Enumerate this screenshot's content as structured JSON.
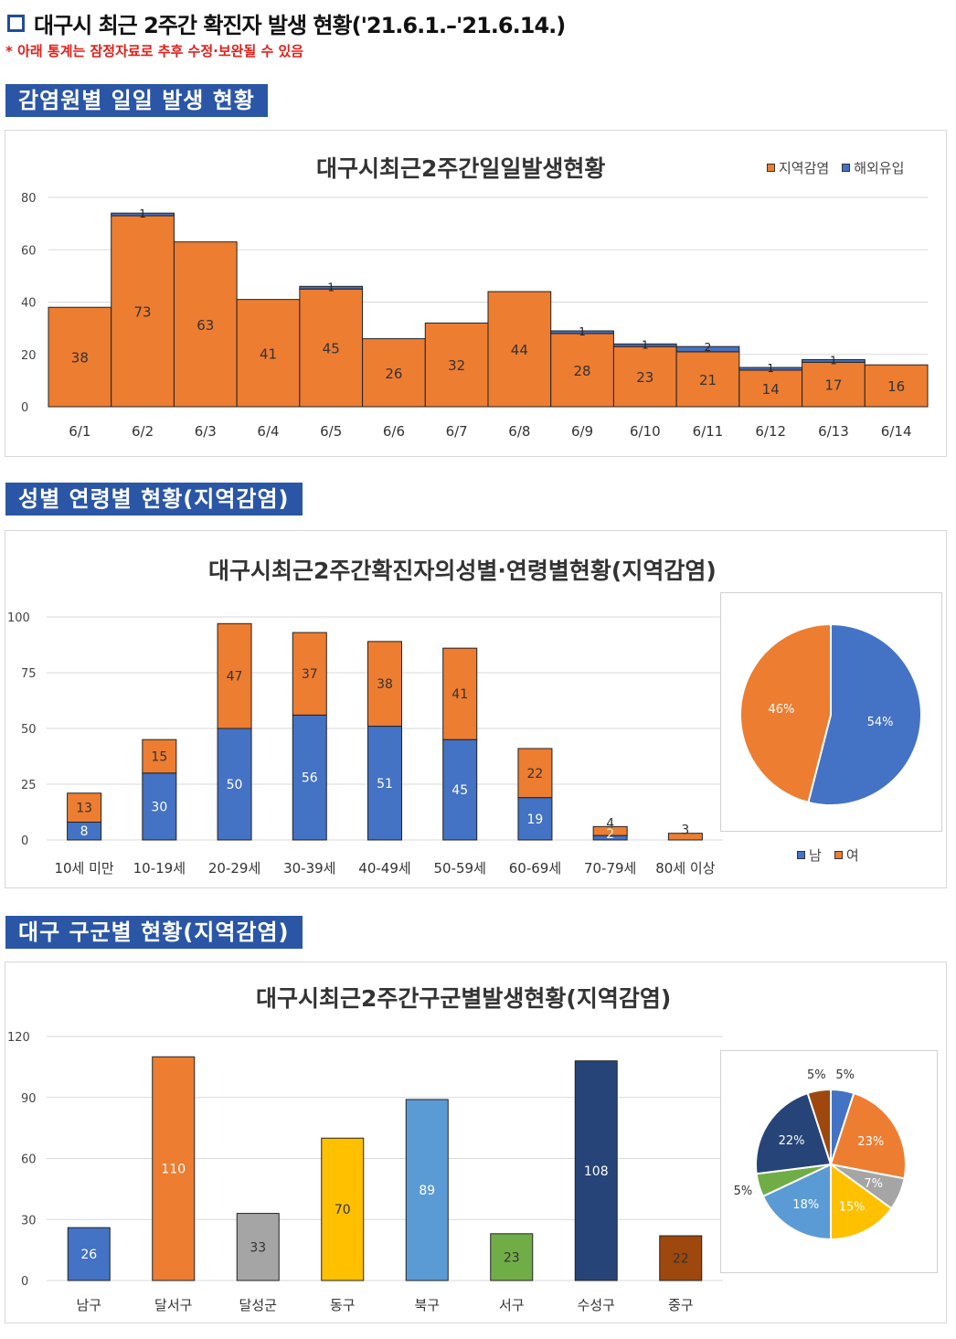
{
  "header": {
    "title": "대구시 최근 2주간 확진자 발생 현황('21.6.1.–'21.6.14.)",
    "notice": "* 아래 통계는 잠정자료로 추후 수정·보완될 수 있음"
  },
  "sections": {
    "daily": "감염원별 일일 발생 현황",
    "gender_age": "성별 연령별 현황(지역감염)",
    "district": "대구 구군별 현황(지역감염)"
  },
  "colors": {
    "orange": "#ed7d31",
    "blue": "#4472c4",
    "section": "#2a56a5"
  },
  "chart_data": [
    {
      "type": "bar",
      "stacked": true,
      "title": "대구시최근2주간일일발생현황",
      "categories": [
        "6/1",
        "6/2",
        "6/3",
        "6/4",
        "6/5",
        "6/6",
        "6/7",
        "6/8",
        "6/9",
        "6/10",
        "6/11",
        "6/12",
        "6/13",
        "6/14"
      ],
      "series": [
        {
          "name": "지역감염",
          "color": "#ed7d31",
          "values": [
            38,
            73,
            63,
            41,
            45,
            26,
            32,
            44,
            28,
            23,
            21,
            14,
            17,
            16
          ]
        },
        {
          "name": "해외유입",
          "color": "#4472c4",
          "values": [
            0,
            1,
            0,
            0,
            1,
            0,
            0,
            0,
            1,
            1,
            2,
            1,
            1,
            0
          ]
        }
      ],
      "yticks": [
        "0",
        "20",
        "40",
        "60",
        "80"
      ],
      "ylim": [
        0,
        80
      ],
      "legend_position": "top-right"
    },
    {
      "type": "bar",
      "stacked": true,
      "title": "대구시최근2주간확진자의성별·연령별현황(지역감염)",
      "categories": [
        "10세 미만",
        "10-19세",
        "20-29세",
        "30-39세",
        "40-49세",
        "50-59세",
        "60-69세",
        "70-79세",
        "80세 이상"
      ],
      "series": [
        {
          "name": "남",
          "color": "#4472c4",
          "values": [
            8,
            30,
            50,
            56,
            51,
            45,
            19,
            2,
            0
          ]
        },
        {
          "name": "여",
          "color": "#ed7d31",
          "values": [
            13,
            15,
            47,
            37,
            38,
            41,
            22,
            4,
            3
          ]
        }
      ],
      "labels_blue": [
        "8",
        "30",
        "50",
        "56",
        "51",
        "45",
        "19",
        "2",
        ""
      ],
      "labels_orange": [
        "13",
        "15",
        "47",
        "37",
        "38",
        "41",
        "22",
        "4",
        "3"
      ],
      "yticks": [
        "0",
        "25",
        "50",
        "75",
        "100"
      ],
      "ylim": [
        0,
        100
      ],
      "pie": {
        "type": "pie",
        "slices": [
          {
            "name": "남",
            "value": 54,
            "label": "54%",
            "color": "#4472c4"
          },
          {
            "name": "여",
            "value": 46,
            "label": "46%",
            "color": "#ed7d31"
          }
        ],
        "legend": [
          "남",
          "여"
        ]
      }
    },
    {
      "type": "bar",
      "title": "대구시최근2주간구군별발생현황(지역감염)",
      "categories": [
        "남구",
        "달서구",
        "달성군",
        "동구",
        "북구",
        "서구",
        "수성구",
        "중구"
      ],
      "values": [
        26,
        110,
        33,
        70,
        89,
        23,
        108,
        22
      ],
      "colors": [
        "#4472c4",
        "#ed7d31",
        "#a5a5a5",
        "#ffc000",
        "#5b9bd5",
        "#70ad47",
        "#264478",
        "#9e480e"
      ],
      "yticks": [
        "0",
        "30",
        "60",
        "90",
        "120"
      ],
      "ylim": [
        0,
        120
      ],
      "pie": {
        "type": "pie",
        "slices": [
          {
            "name": "남구",
            "value": 5,
            "label": "5%",
            "color": "#4472c4"
          },
          {
            "name": "달서구",
            "value": 23,
            "label": "23%",
            "color": "#ed7d31"
          },
          {
            "name": "달성군",
            "value": 7,
            "label": "7%",
            "color": "#a5a5a5"
          },
          {
            "name": "동구",
            "value": 15,
            "label": "15%",
            "color": "#ffc000"
          },
          {
            "name": "북구",
            "value": 18,
            "label": "18%",
            "color": "#5b9bd5"
          },
          {
            "name": "서구",
            "value": 5,
            "label": "5%",
            "color": "#70ad47"
          },
          {
            "name": "수성구",
            "value": 22,
            "label": "22%",
            "color": "#264478"
          },
          {
            "name": "중구",
            "value": 5,
            "label": "5%",
            "color": "#9e480e"
          }
        ]
      }
    }
  ]
}
